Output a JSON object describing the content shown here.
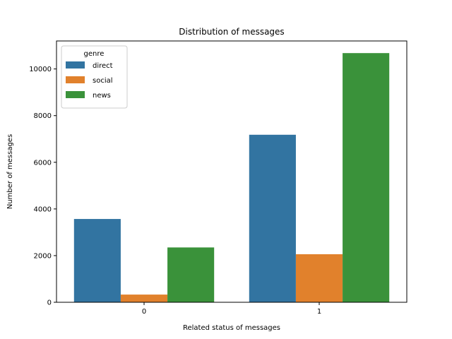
{
  "chart_data": {
    "type": "bar",
    "title": "Distribution of messages",
    "xlabel": "Related status of messages",
    "ylabel": "Number of messages",
    "categories": [
      "0",
      "1"
    ],
    "ylim": [
      0,
      11200
    ],
    "yticks": [
      0,
      2000,
      4000,
      6000,
      8000,
      10000
    ],
    "yticks_labels": [
      "0",
      "2000",
      "4000",
      "6000",
      "8000",
      "10000"
    ],
    "legend": {
      "title": "genre",
      "placement": "top-left"
    },
    "series": [
      {
        "name": "direct",
        "color": "#3274a1",
        "values": [
          3570,
          7180
        ]
      },
      {
        "name": "social",
        "color": "#e1812c",
        "values": [
          330,
          2060
        ]
      },
      {
        "name": "news",
        "color": "#3a923a",
        "values": [
          2350,
          10680
        ]
      }
    ],
    "grid": false
  }
}
